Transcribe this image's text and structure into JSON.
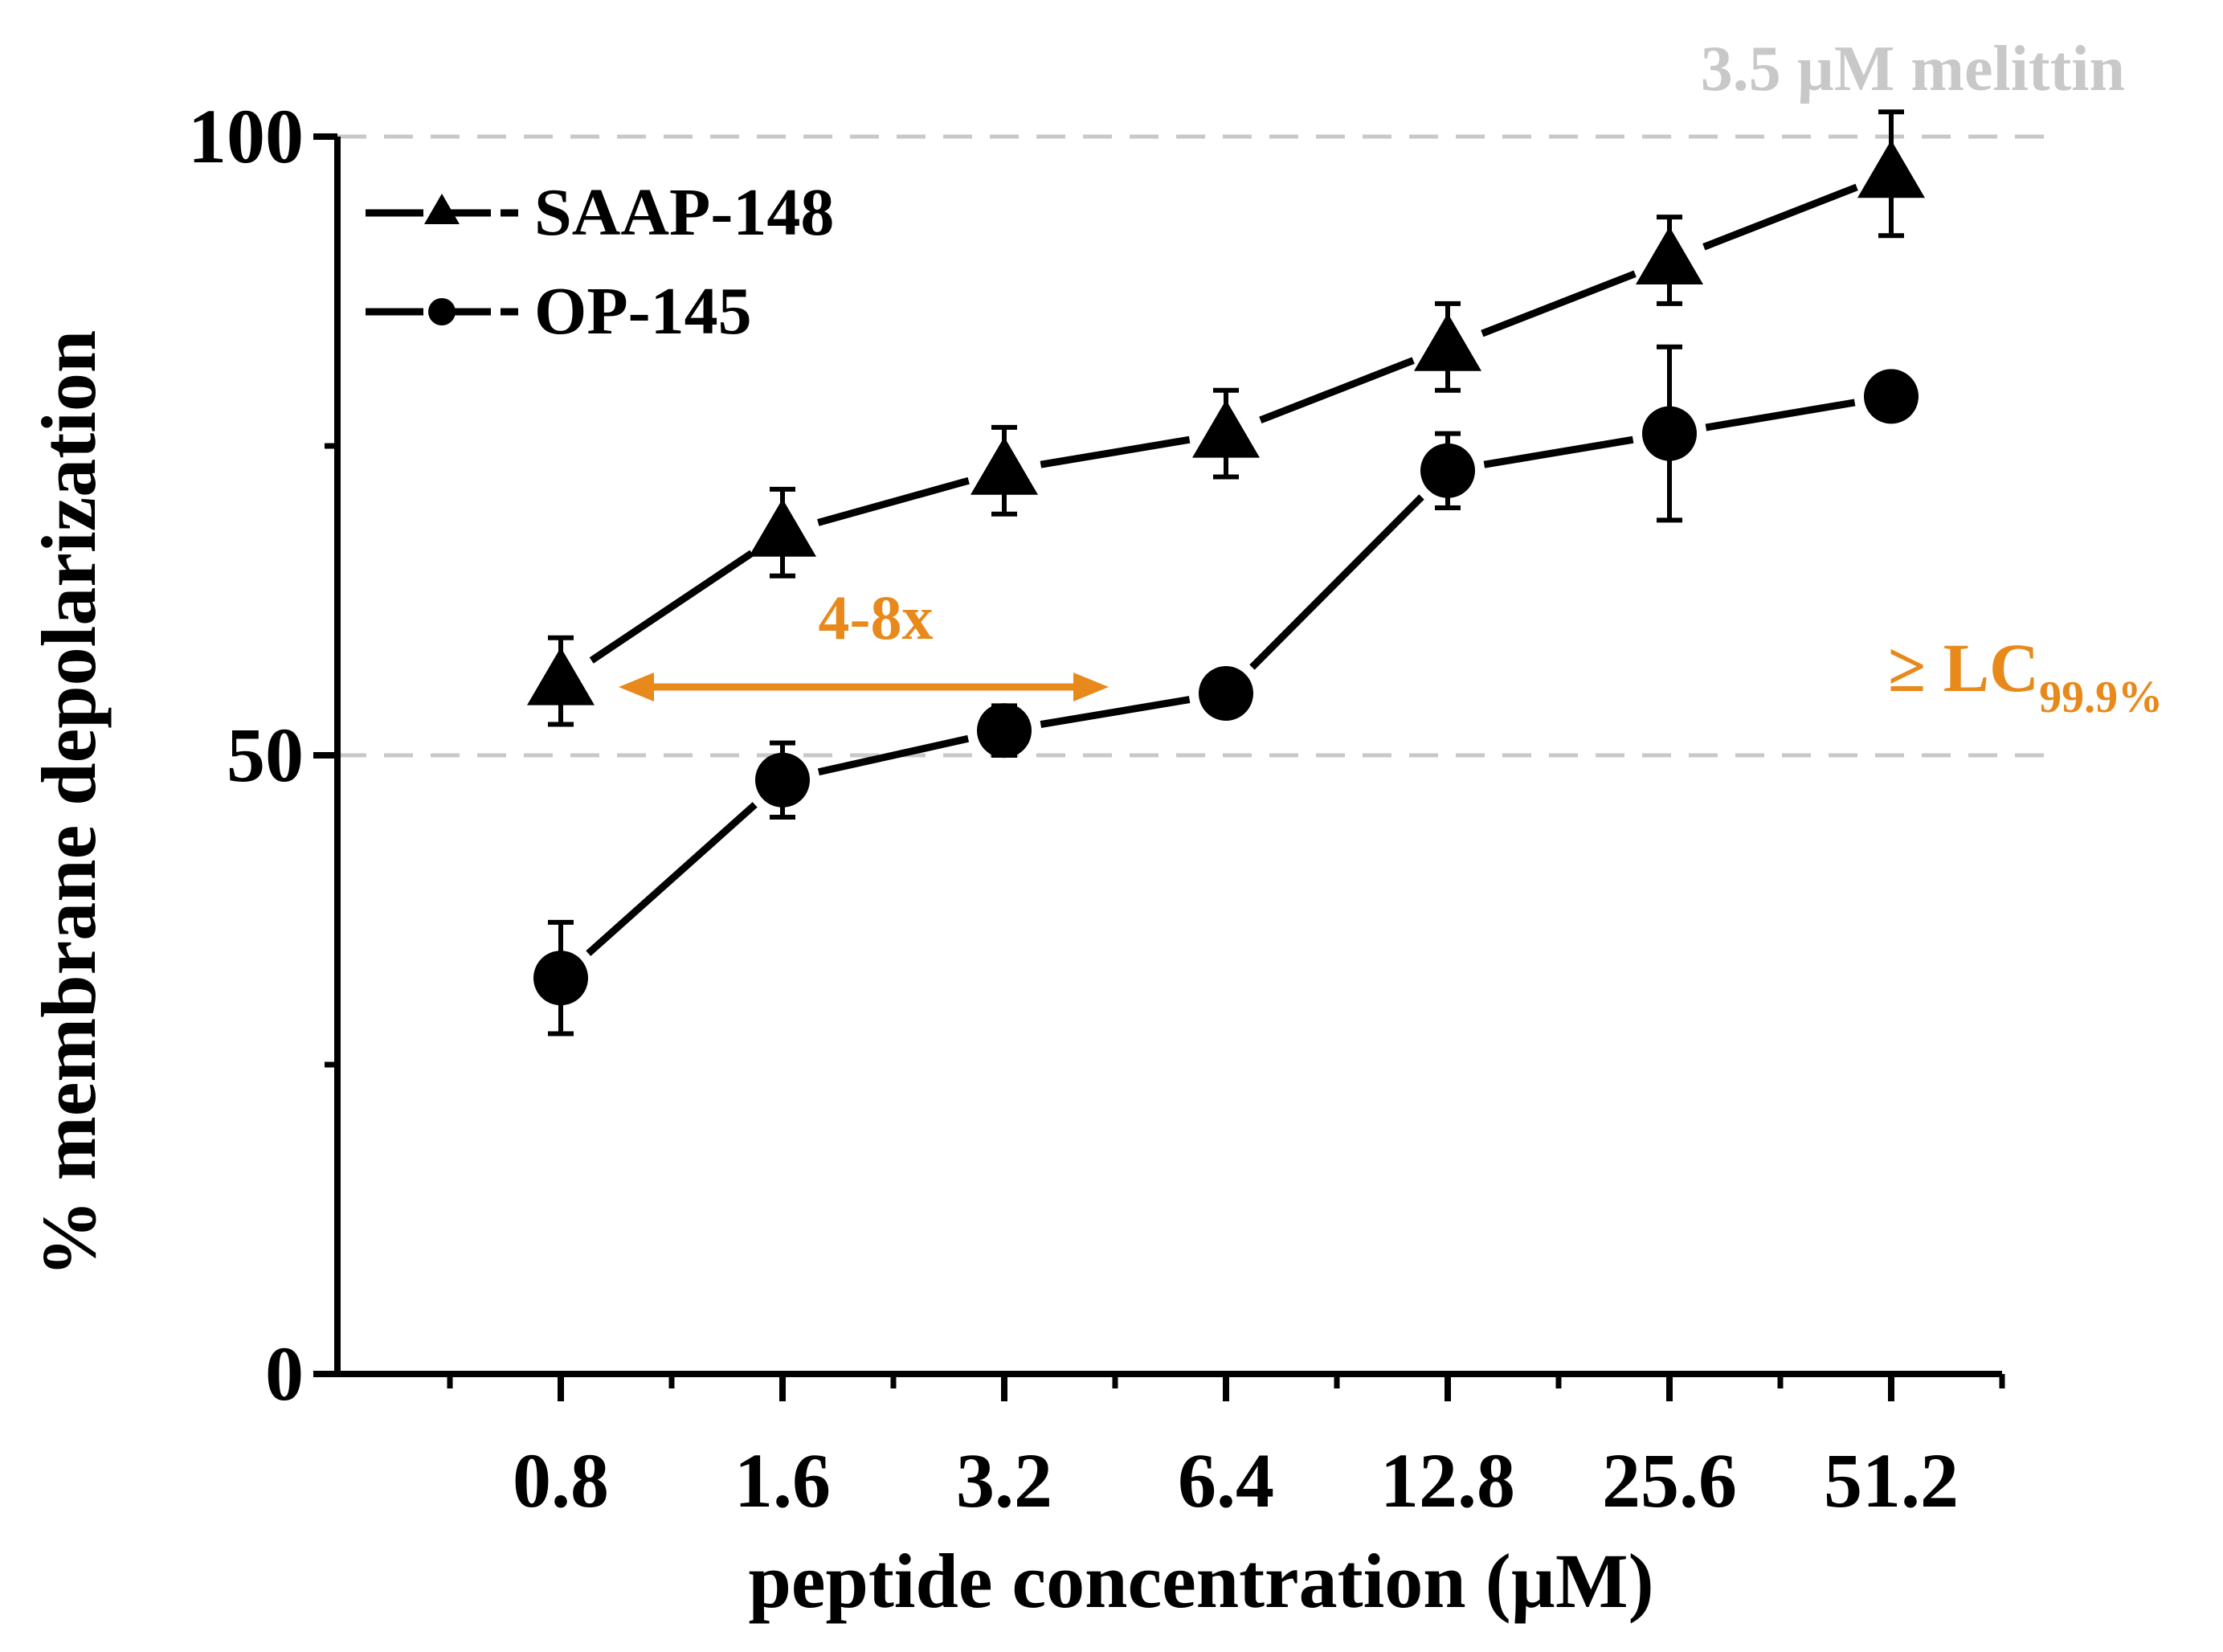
{
  "chart_data": {
    "type": "line",
    "title": "",
    "xlabel": "peptide concentration (µM)",
    "ylabel": "% membrane depolarization",
    "categories": [
      "0.8",
      "1.6",
      "3.2",
      "6.4",
      "12.8",
      "25.6",
      "51.2"
    ],
    "x_scale": "log2",
    "ylim": [
      0,
      100
    ],
    "yticks": [
      0,
      50,
      100
    ],
    "grid": false,
    "legend_position": "top-left",
    "series": [
      {
        "name": "SAAP-148",
        "marker": "triangle",
        "values": [
          56,
          68,
          73,
          76,
          83,
          90,
          97
        ],
        "error": [
          3.5,
          3.5,
          3.5,
          3.5,
          3.5,
          3.5,
          5
        ]
      },
      {
        "name": "OP-145",
        "marker": "circle",
        "values": [
          32,
          48,
          52,
          55,
          73,
          76,
          79
        ],
        "error": [
          4.5,
          3,
          2,
          1.5,
          3,
          7,
          1.5
        ]
      }
    ],
    "reference_lines": [
      {
        "label": "3.5 µM melittin",
        "y": 100,
        "color": "#c8c8c8"
      },
      {
        "label_main": "≥ LC",
        "label_sub": "99.9%",
        "y": 50,
        "color": "#e8891c"
      }
    ],
    "annotations": [
      {
        "text": "4-8x",
        "color": "#e8891c",
        "from_category": "0.8",
        "to_category": "3.2"
      }
    ]
  }
}
